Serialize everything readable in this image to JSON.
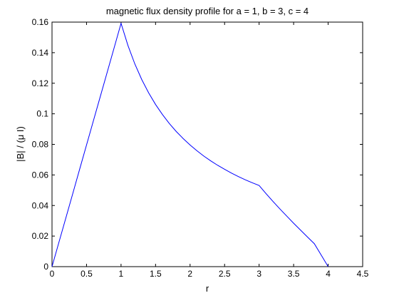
{
  "chart_data": {
    "type": "line",
    "title": "magnetic flux density profile for a = 1, b = 3, c = 4",
    "xlabel": "r",
    "ylabel": "|B| / (μ I)",
    "xlim": [
      0,
      4.5
    ],
    "ylim": [
      0,
      0.16
    ],
    "xticks": [
      "0",
      "0.5",
      "1",
      "1.5",
      "2",
      "2.5",
      "3",
      "3.5",
      "4",
      "4.5"
    ],
    "yticks": [
      "0",
      "0.02",
      "0.04",
      "0.06",
      "0.08",
      "0.1",
      "0.12",
      "0.14",
      "0.16"
    ],
    "xtick_values": [
      0,
      0.5,
      1,
      1.5,
      2,
      2.5,
      3,
      3.5,
      4,
      4.5
    ],
    "ytick_values": [
      0,
      0.02,
      0.04,
      0.06,
      0.08,
      0.1,
      0.12,
      0.14,
      0.16
    ],
    "grid": false,
    "legend": "none",
    "series": [
      {
        "color": "#0000ff",
        "x": [
          0,
          0.1,
          0.2,
          0.3,
          0.4,
          0.5,
          0.6,
          0.7,
          0.8,
          0.9,
          1.0,
          1.1,
          1.2,
          1.3,
          1.4,
          1.5,
          1.6,
          1.7,
          1.8,
          1.9,
          2.0,
          2.1,
          2.2,
          2.3,
          2.4,
          2.5,
          2.6,
          2.7,
          2.8,
          2.9,
          3.0,
          3.1,
          3.2,
          3.3,
          3.4,
          3.5,
          3.6,
          3.7,
          3.8,
          3.9,
          4.0
        ],
        "y": [
          0,
          0.0159,
          0.0318,
          0.0477,
          0.0637,
          0.0796,
          0.0955,
          0.1114,
          0.1273,
          0.1432,
          0.1592,
          0.1447,
          0.1326,
          0.1224,
          0.1137,
          0.1061,
          0.0995,
          0.0936,
          0.0884,
          0.0838,
          0.0796,
          0.0758,
          0.0723,
          0.0692,
          0.0663,
          0.0637,
          0.0612,
          0.0589,
          0.0568,
          0.0549,
          0.0531,
          0.0478,
          0.0427,
          0.0378,
          0.0331,
          0.0284,
          0.0239,
          0.0194,
          0.015,
          0.0075,
          0
        ]
      }
    ]
  }
}
